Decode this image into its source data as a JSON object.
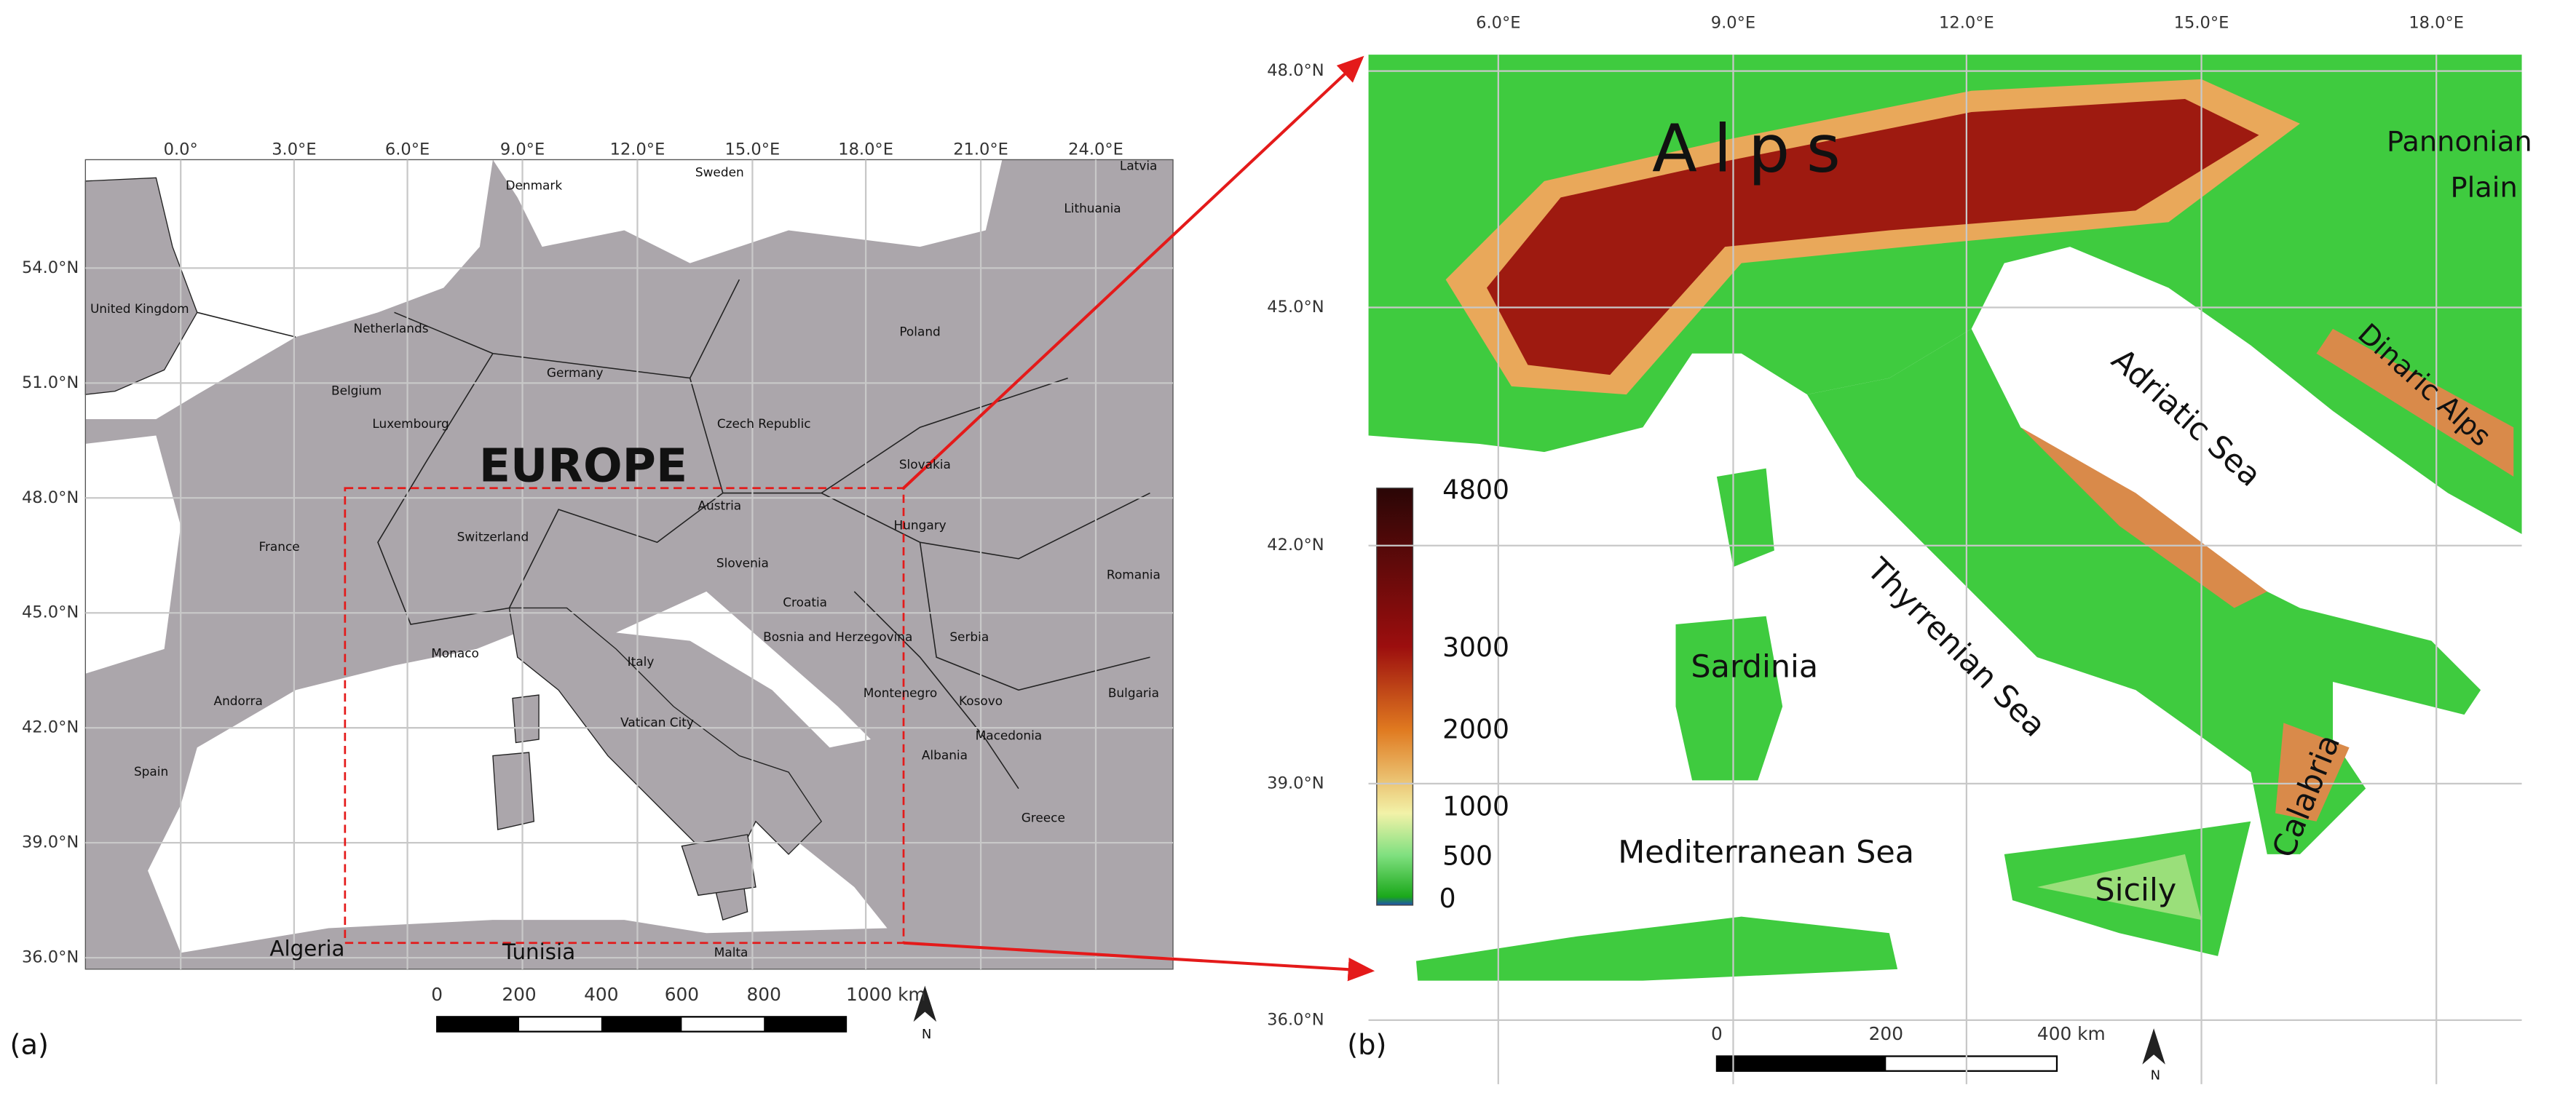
{
  "panel_a": {
    "label": "(a)",
    "title": "EUROPE",
    "lon_labels": [
      "0.0°",
      "3.0°E",
      "6.0°E",
      "9.0°E",
      "12.0°E",
      "15.0°E",
      "18.0°E",
      "21.0°E",
      "24.0°E"
    ],
    "lat_labels": [
      "54.0°N",
      "51.0°N",
      "48.0°N",
      "45.0°N",
      "42.0°N",
      "39.0°N",
      "36.0°N"
    ],
    "countries": [
      "United Kingdom",
      "Denmark",
      "Sweden",
      "Latvia",
      "Lithuania",
      "Netherlands",
      "Germany",
      "Poland",
      "Belgium",
      "Luxembourg",
      "Czech Republic",
      "Slovakia",
      "Austria",
      "Hungary",
      "Switzerland",
      "France",
      "Slovenia",
      "Romania",
      "Croatia",
      "Bosnia and Herzegovina",
      "Serbia",
      "Monaco",
      "Italy",
      "Andorra",
      "Montenegro",
      "Kosovo",
      "Bulgaria",
      "Vatican City",
      "Macedonia",
      "Spain",
      "Albania",
      "Greece",
      "Algeria",
      "Tunisia",
      "Malta"
    ],
    "scale_labels": [
      "0",
      "200",
      "400",
      "600",
      "800",
      "1000 km"
    ],
    "north": "N"
  },
  "panel_b": {
    "label": "(b)",
    "lon_labels": [
      "6.0°E",
      "9.0°E",
      "12.0°E",
      "15.0°E",
      "18.0°E"
    ],
    "lat_labels": [
      "48.0°N",
      "45.0°N",
      "42.0°N",
      "39.0°N",
      "36.0°N"
    ],
    "features": {
      "alps": "Alps",
      "pannonian": [
        "Pannonian",
        "Plain"
      ],
      "dinaric": "Dinaric Alps",
      "adriatic": "Adriatic Sea",
      "thyrrenian": "Thyrrenian Sea",
      "sardinia": "Sardinia",
      "mediterranean": "Mediterranean Sea",
      "sicily": "Sicily",
      "calabria": "Calabria"
    },
    "colorbar_labels": [
      "4800",
      "3000",
      "2000",
      "1000",
      "500",
      "0"
    ],
    "scale_labels": [
      "0",
      "200",
      "400 km"
    ],
    "north": "N"
  }
}
